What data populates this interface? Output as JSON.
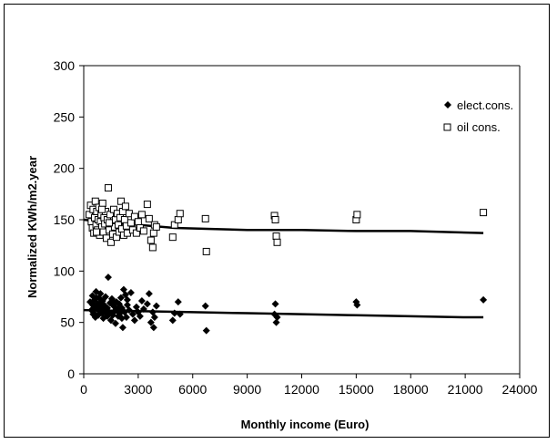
{
  "chart_data": {
    "type": "scatter",
    "title": "",
    "xlabel": "Monthly income (Euro)",
    "ylabel": "Normalized KWh/m2.year",
    "xlim": [
      0,
      24000
    ],
    "ylim": [
      0,
      300
    ],
    "xticks": [
      0,
      3000,
      6000,
      9000,
      12000,
      15000,
      18000,
      21000,
      24000
    ],
    "yticks": [
      0,
      50,
      100,
      150,
      200,
      250,
      300
    ],
    "grid": false,
    "legend_position": "top-right",
    "series": [
      {
        "name": "elect.cons.",
        "marker": "filled-diamond",
        "color": "#000000",
        "points": [
          [
            350,
            70
          ],
          [
            420,
            62
          ],
          [
            480,
            76
          ],
          [
            520,
            58
          ],
          [
            560,
            66
          ],
          [
            600,
            72
          ],
          [
            640,
            55
          ],
          [
            680,
            80
          ],
          [
            720,
            63
          ],
          [
            760,
            68
          ],
          [
            800,
            57
          ],
          [
            840,
            74
          ],
          [
            880,
            61
          ],
          [
            920,
            78
          ],
          [
            960,
            65
          ],
          [
            1000,
            59
          ],
          [
            1040,
            71
          ],
          [
            1080,
            54
          ],
          [
            1120,
            67
          ],
          [
            1160,
            62
          ],
          [
            1200,
            75
          ],
          [
            1250,
            58
          ],
          [
            1300,
            64
          ],
          [
            1350,
            94
          ],
          [
            1400,
            60
          ],
          [
            1450,
            69
          ],
          [
            1500,
            52
          ],
          [
            1550,
            73
          ],
          [
            1600,
            57
          ],
          [
            1650,
            66
          ],
          [
            1700,
            61
          ],
          [
            1750,
            49
          ],
          [
            1800,
            70
          ],
          [
            1850,
            63
          ],
          [
            1900,
            56
          ],
          [
            1950,
            68
          ],
          [
            2000,
            59
          ],
          [
            2050,
            74
          ],
          [
            2100,
            64
          ],
          [
            2150,
            45
          ],
          [
            2200,
            82
          ],
          [
            2250,
            60
          ],
          [
            2300,
            77
          ],
          [
            2350,
            55
          ],
          [
            2400,
            67
          ],
          [
            2500,
            62
          ],
          [
            2600,
            79
          ],
          [
            2700,
            58
          ],
          [
            2800,
            52
          ],
          [
            2900,
            65
          ],
          [
            3000,
            60
          ],
          [
            3100,
            56
          ],
          [
            3200,
            71
          ],
          [
            3300,
            63
          ],
          [
            3500,
            68
          ],
          [
            3600,
            78
          ],
          [
            3700,
            50
          ],
          [
            3800,
            60
          ],
          [
            3850,
            45
          ],
          [
            3900,
            55
          ],
          [
            4000,
            66
          ],
          [
            4900,
            52
          ],
          [
            5000,
            59
          ],
          [
            5200,
            70
          ],
          [
            5300,
            58
          ],
          [
            6700,
            66
          ],
          [
            6750,
            42
          ],
          [
            10500,
            58
          ],
          [
            10550,
            68
          ],
          [
            10600,
            50
          ],
          [
            10650,
            55
          ],
          [
            15000,
            70
          ],
          [
            15050,
            67
          ],
          [
            22000,
            72
          ],
          [
            500,
            67
          ],
          [
            600,
            58
          ],
          [
            700,
            74
          ],
          [
            900,
            69
          ],
          [
            1100,
            63
          ],
          [
            1300,
            56
          ],
          [
            1600,
            71
          ],
          [
            1900,
            60
          ],
          [
            2100,
            54
          ],
          [
            2400,
            72
          ]
        ],
        "trend": [
          [
            0,
            62
          ],
          [
            3000,
            61
          ],
          [
            6000,
            60
          ],
          [
            9000,
            59
          ],
          [
            12000,
            58
          ],
          [
            15000,
            57
          ],
          [
            18000,
            56
          ],
          [
            21000,
            55
          ],
          [
            22000,
            55
          ]
        ]
      },
      {
        "name": "oil cons.",
        "marker": "hollow-square",
        "color": "#000000",
        "points": [
          [
            300,
            155
          ],
          [
            380,
            164
          ],
          [
            420,
            148
          ],
          [
            480,
            142
          ],
          [
            520,
            160
          ],
          [
            560,
            137
          ],
          [
            600,
            152
          ],
          [
            640,
            168
          ],
          [
            680,
            145
          ],
          [
            720,
            158
          ],
          [
            760,
            140
          ],
          [
            800,
            150
          ],
          [
            840,
            162
          ],
          [
            880,
            135
          ],
          [
            920,
            148
          ],
          [
            960,
            155
          ],
          [
            1000,
            143
          ],
          [
            1040,
            166
          ],
          [
            1080,
            138
          ],
          [
            1120,
            152
          ],
          [
            1160,
            146
          ],
          [
            1200,
            158
          ],
          [
            1250,
            132
          ],
          [
            1300,
            150
          ],
          [
            1350,
            181
          ],
          [
            1400,
            140
          ],
          [
            1450,
            155
          ],
          [
            1500,
            128
          ],
          [
            1550,
            147
          ],
          [
            1600,
            136
          ],
          [
            1650,
            160
          ],
          [
            1700,
            143
          ],
          [
            1750,
            150
          ],
          [
            1800,
            133
          ],
          [
            1850,
            156
          ],
          [
            1900,
            145
          ],
          [
            1950,
            138
          ],
          [
            2000,
            152
          ],
          [
            2050,
            168
          ],
          [
            2100,
            141
          ],
          [
            2150,
            158
          ],
          [
            2200,
            135
          ],
          [
            2250,
            150
          ],
          [
            2300,
            163
          ],
          [
            2350,
            144
          ],
          [
            2400,
            137
          ],
          [
            2500,
            156
          ],
          [
            2600,
            147
          ],
          [
            2700,
            140
          ],
          [
            2800,
            153
          ],
          [
            2900,
            137
          ],
          [
            3000,
            148
          ],
          [
            3100,
            142
          ],
          [
            3200,
            155
          ],
          [
            3300,
            139
          ],
          [
            3500,
            165
          ],
          [
            3600,
            151
          ],
          [
            3700,
            130
          ],
          [
            3800,
            123
          ],
          [
            3850,
            137
          ],
          [
            3900,
            145
          ],
          [
            4000,
            143
          ],
          [
            4900,
            133
          ],
          [
            5000,
            145
          ],
          [
            5200,
            150
          ],
          [
            5300,
            156
          ],
          [
            6700,
            151
          ],
          [
            6750,
            119
          ],
          [
            10500,
            154
          ],
          [
            10550,
            150
          ],
          [
            10600,
            134
          ],
          [
            10650,
            128
          ],
          [
            15000,
            150
          ],
          [
            15050,
            155
          ],
          [
            22000,
            157
          ],
          [
            700,
            138
          ],
          [
            1000,
            160
          ],
          [
            1400,
            147
          ]
        ],
        "trend": [
          [
            0,
            150
          ],
          [
            2000,
            146
          ],
          [
            3000,
            145
          ],
          [
            5000,
            142
          ],
          [
            7000,
            141
          ],
          [
            9000,
            140
          ],
          [
            12000,
            140
          ],
          [
            15000,
            139
          ],
          [
            18000,
            139
          ],
          [
            20000,
            138
          ],
          [
            22000,
            137
          ]
        ]
      }
    ]
  }
}
